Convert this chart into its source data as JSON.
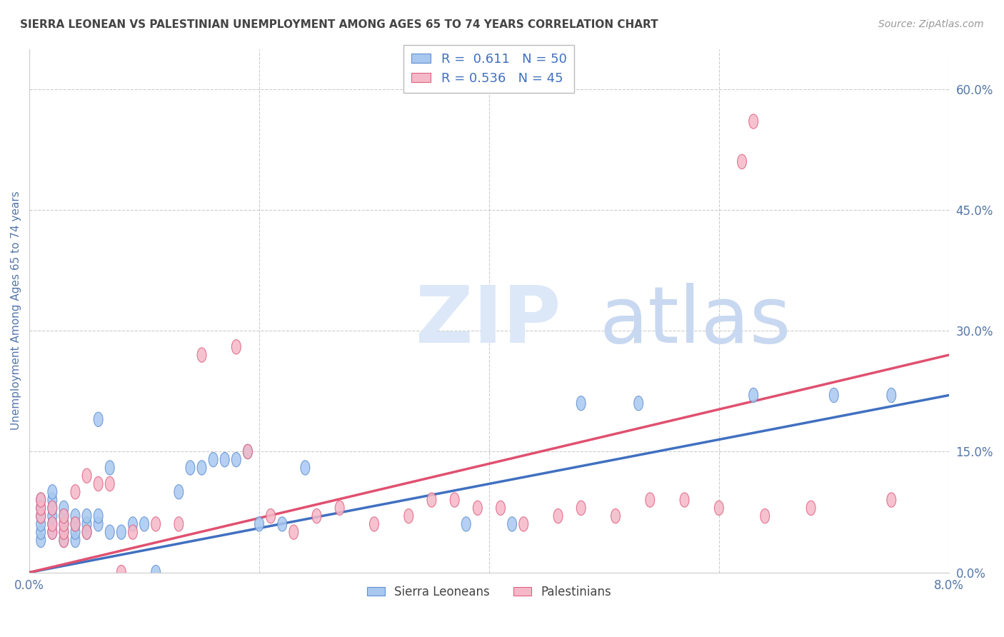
{
  "title": "SIERRA LEONEAN VS PALESTINIAN UNEMPLOYMENT AMONG AGES 65 TO 74 YEARS CORRELATION CHART",
  "source": "Source: ZipAtlas.com",
  "ylabel": "Unemployment Among Ages 65 to 74 years",
  "xlim": [
    0,
    0.08
  ],
  "ylim": [
    0,
    0.65
  ],
  "yticks_right": [
    0.0,
    0.15,
    0.3,
    0.45,
    0.6
  ],
  "yticks_right_labels": [
    "0.0%",
    "15.0%",
    "30.0%",
    "45.0%",
    "60.0%"
  ],
  "blue_color": "#A8C8F0",
  "pink_color": "#F5B8C8",
  "blue_edge_color": "#6090D0",
  "pink_edge_color": "#E06080",
  "blue_line_color": "#4070C0",
  "pink_line_color": "#E05070",
  "blue_R": 0.611,
  "blue_N": 50,
  "pink_R": 0.536,
  "pink_N": 45,
  "legend_label_blue": "Sierra Leoneans",
  "legend_label_pink": "Palestinians",
  "title_color": "#444444",
  "axis_label_color": "#5577AA",
  "tick_color": "#5577AA",
  "grid_color": "#CCCCCC",
  "blue_scatter_x": [
    0.001,
    0.001,
    0.001,
    0.001,
    0.001,
    0.001,
    0.002,
    0.002,
    0.002,
    0.002,
    0.002,
    0.002,
    0.003,
    0.003,
    0.003,
    0.003,
    0.003,
    0.004,
    0.004,
    0.004,
    0.004,
    0.005,
    0.005,
    0.005,
    0.006,
    0.006,
    0.006,
    0.007,
    0.007,
    0.008,
    0.009,
    0.01,
    0.011,
    0.013,
    0.014,
    0.015,
    0.016,
    0.017,
    0.018,
    0.019,
    0.02,
    0.022,
    0.024,
    0.038,
    0.042,
    0.048,
    0.053,
    0.063,
    0.07,
    0.075
  ],
  "blue_scatter_y": [
    0.04,
    0.05,
    0.06,
    0.07,
    0.08,
    0.09,
    0.05,
    0.06,
    0.07,
    0.08,
    0.09,
    0.1,
    0.04,
    0.05,
    0.06,
    0.07,
    0.08,
    0.04,
    0.05,
    0.06,
    0.07,
    0.05,
    0.06,
    0.07,
    0.06,
    0.07,
    0.19,
    0.05,
    0.13,
    0.05,
    0.06,
    0.06,
    0.0,
    0.1,
    0.13,
    0.13,
    0.14,
    0.14,
    0.14,
    0.15,
    0.06,
    0.06,
    0.13,
    0.06,
    0.06,
    0.21,
    0.21,
    0.22,
    0.22,
    0.22
  ],
  "pink_scatter_x": [
    0.001,
    0.001,
    0.001,
    0.002,
    0.002,
    0.002,
    0.003,
    0.003,
    0.003,
    0.003,
    0.004,
    0.004,
    0.005,
    0.005,
    0.006,
    0.007,
    0.008,
    0.009,
    0.011,
    0.013,
    0.015,
    0.018,
    0.019,
    0.021,
    0.023,
    0.025,
    0.027,
    0.03,
    0.033,
    0.035,
    0.037,
    0.039,
    0.041,
    0.043,
    0.046,
    0.048,
    0.051,
    0.054,
    0.057,
    0.06,
    0.062,
    0.063,
    0.064,
    0.068,
    0.075
  ],
  "pink_scatter_y": [
    0.07,
    0.08,
    0.09,
    0.05,
    0.06,
    0.08,
    0.04,
    0.05,
    0.06,
    0.07,
    0.06,
    0.1,
    0.05,
    0.12,
    0.11,
    0.11,
    0.0,
    0.05,
    0.06,
    0.06,
    0.27,
    0.28,
    0.15,
    0.07,
    0.05,
    0.07,
    0.08,
    0.06,
    0.07,
    0.09,
    0.09,
    0.08,
    0.08,
    0.06,
    0.07,
    0.08,
    0.07,
    0.09,
    0.09,
    0.08,
    0.51,
    0.56,
    0.07,
    0.08,
    0.09
  ]
}
